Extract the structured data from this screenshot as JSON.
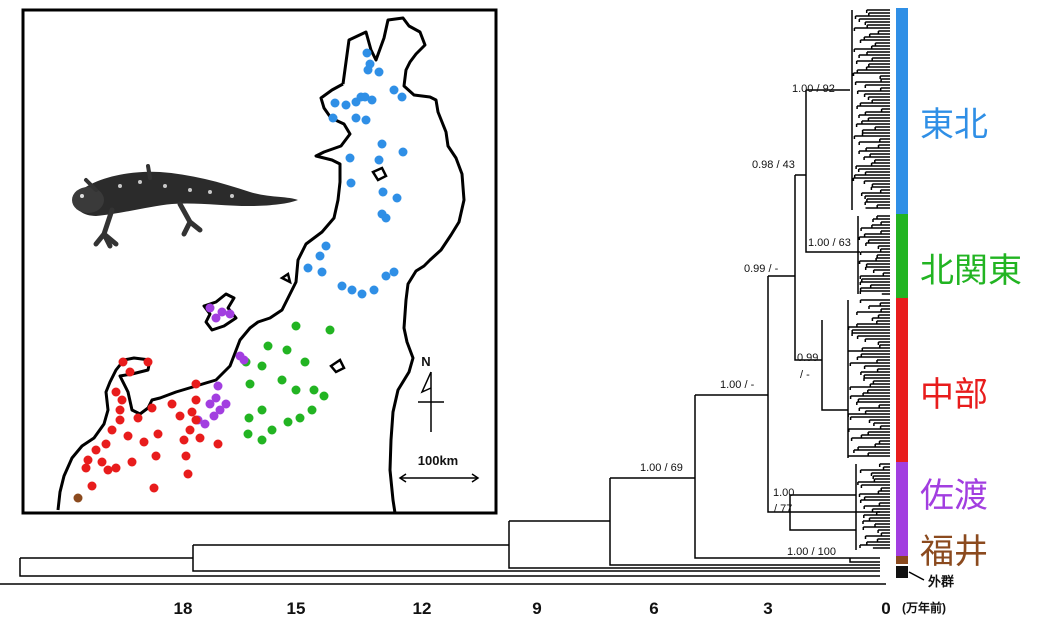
{
  "clades": [
    {
      "key": "tohoku",
      "label": "東北",
      "color": "#2f8fe6"
    },
    {
      "key": "kitakanto",
      "label": "北関東",
      "color": "#22b422"
    },
    {
      "key": "chubu",
      "label": "中部",
      "color": "#e81c1c"
    },
    {
      "key": "sado",
      "label": "佐渡",
      "color": "#a23ee0"
    },
    {
      "key": "fukui",
      "label": "福井",
      "color": "#8b4a1e"
    }
  ],
  "outgroup": {
    "label": "外群",
    "color": "#111111"
  },
  "axis": {
    "ticks": [
      "18",
      "15",
      "12",
      "9",
      "6",
      "3",
      "0"
    ],
    "unit": "(万年前)"
  },
  "node_labels": [
    {
      "key": "n1",
      "text": "1.00 / 92"
    },
    {
      "key": "n2",
      "text": "0.98 / 43"
    },
    {
      "key": "n3",
      "text": "1.00 / 63"
    },
    {
      "key": "n4",
      "text": "0.99 / -"
    },
    {
      "key": "n5a",
      "text": "0.99"
    },
    {
      "key": "n5b",
      "text": "/ -"
    },
    {
      "key": "n6",
      "text": "1.00 /  -"
    },
    {
      "key": "n7a",
      "text": "1.00"
    },
    {
      "key": "n7b",
      "text": "/ 77"
    },
    {
      "key": "n8",
      "text": "1.00 / 69"
    },
    {
      "key": "n9",
      "text": "1.00 / 100"
    }
  ],
  "map": {
    "north": "N",
    "scale": "100km"
  }
}
